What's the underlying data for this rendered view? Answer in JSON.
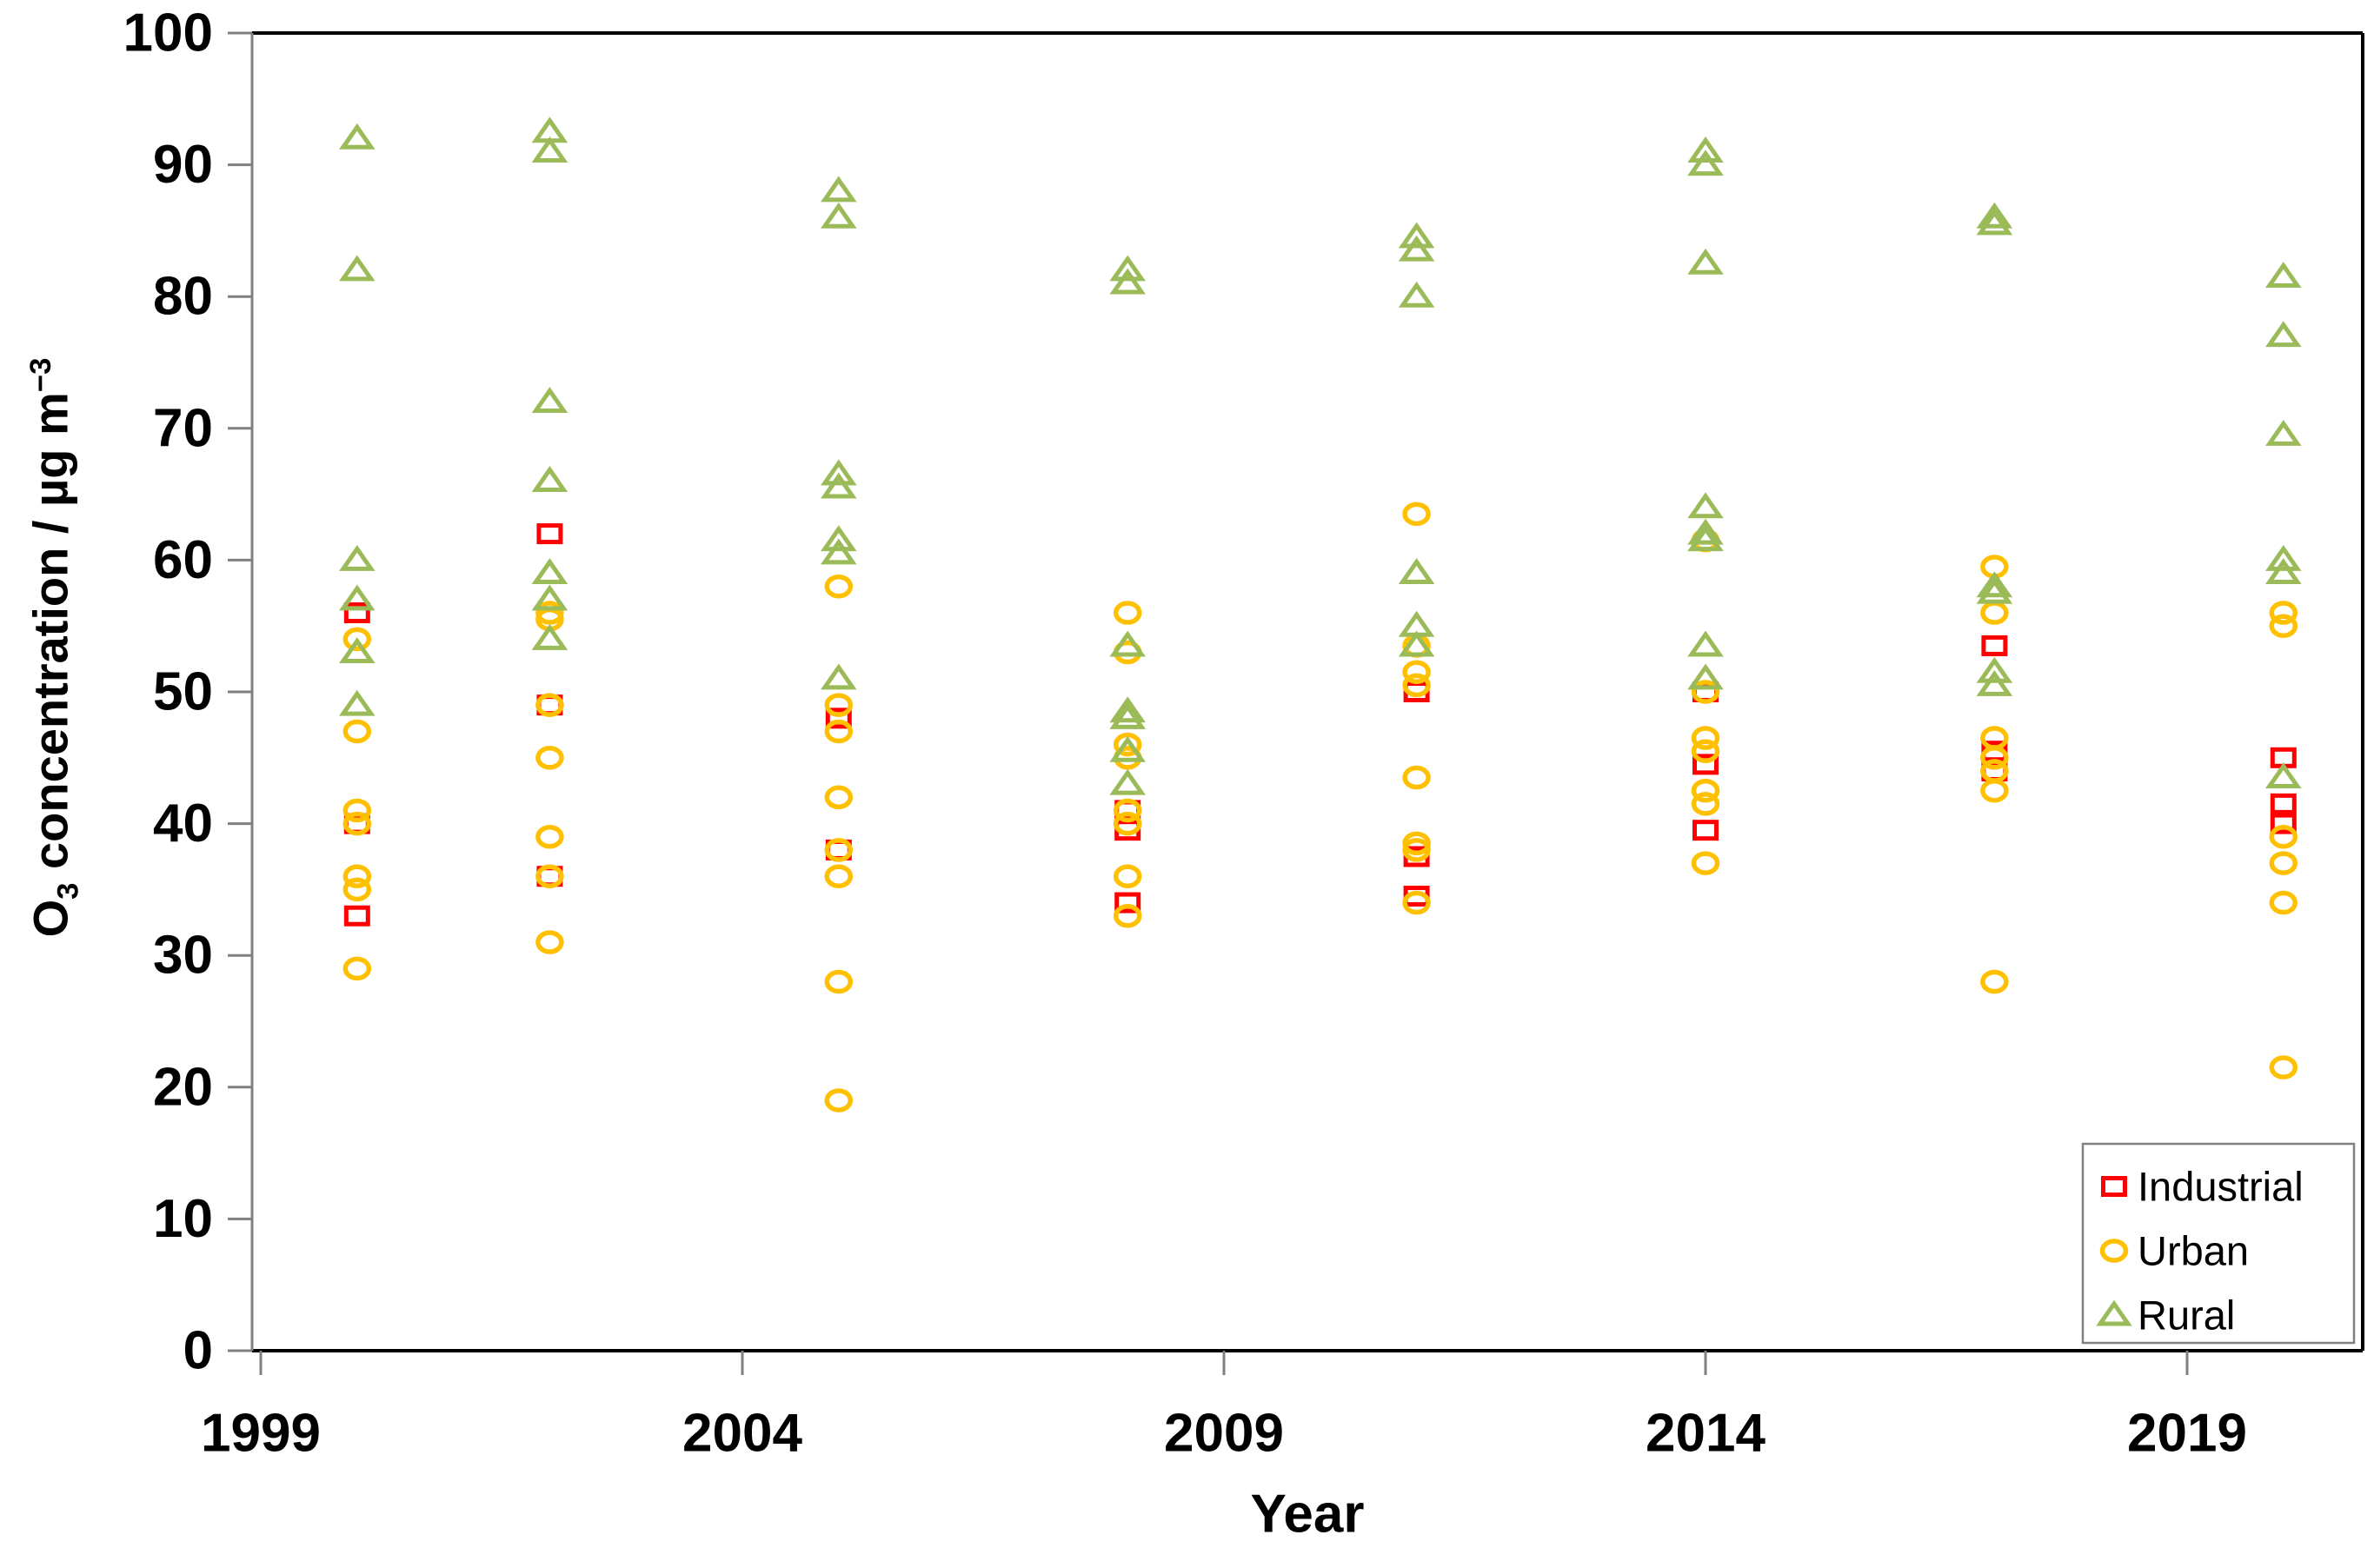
{
  "chart_data": {
    "type": "scatter",
    "title": "",
    "x_axis": {
      "label": "Year",
      "ticks": [
        1999,
        2004,
        2009,
        2014,
        2019
      ],
      "min": 1998.9,
      "max": 2020.8
    },
    "y_axis": {
      "label_text": "O3 concentration / µg m−3",
      "label_parts": {
        "pre": "O",
        "sub": "3",
        "mid": " concentration / µg m",
        "sup": "−3"
      },
      "min": 0,
      "max": 100,
      "tick_step": 10,
      "ticks": [
        0,
        10,
        20,
        30,
        40,
        50,
        60,
        70,
        80,
        90,
        100
      ]
    },
    "grid": "off",
    "legend": {
      "position": "bottom-right",
      "items": [
        "Industrial",
        "Urban",
        "Rural"
      ]
    },
    "series": [
      {
        "name": "Industrial",
        "marker": "square",
        "color": "#FF0000",
        "points": [
          [
            2000,
            56
          ],
          [
            2000,
            40
          ],
          [
            2000,
            33
          ],
          [
            2002,
            62
          ],
          [
            2002,
            49
          ],
          [
            2002,
            36
          ],
          [
            2005,
            48
          ],
          [
            2005,
            38
          ],
          [
            2008,
            41
          ],
          [
            2008,
            39.5
          ],
          [
            2008,
            34
          ],
          [
            2011,
            50
          ],
          [
            2011,
            37.5
          ],
          [
            2011,
            34.5
          ],
          [
            2014,
            50
          ],
          [
            2014,
            44.5
          ],
          [
            2014,
            39.5
          ],
          [
            2017,
            53.5
          ],
          [
            2017,
            45.5
          ],
          [
            2017,
            44
          ],
          [
            2020,
            45
          ],
          [
            2020,
            41.5
          ],
          [
            2020,
            40
          ]
        ]
      },
      {
        "name": "Urban",
        "marker": "circle",
        "color": "#FFC000",
        "points": [
          [
            2000,
            54
          ],
          [
            2000,
            47
          ],
          [
            2000,
            41
          ],
          [
            2000,
            40
          ],
          [
            2000,
            36
          ],
          [
            2000,
            35
          ],
          [
            2000,
            29
          ],
          [
            2002,
            56
          ],
          [
            2002,
            55.5
          ],
          [
            2002,
            49
          ],
          [
            2002,
            45
          ],
          [
            2002,
            39
          ],
          [
            2002,
            36
          ],
          [
            2002,
            31
          ],
          [
            2005,
            58
          ],
          [
            2005,
            49
          ],
          [
            2005,
            47
          ],
          [
            2005,
            42
          ],
          [
            2005,
            38
          ],
          [
            2005,
            36
          ],
          [
            2005,
            28
          ],
          [
            2005,
            19
          ],
          [
            2008,
            56
          ],
          [
            2008,
            53
          ],
          [
            2008,
            46
          ],
          [
            2008,
            45
          ],
          [
            2008,
            41
          ],
          [
            2008,
            40
          ],
          [
            2008,
            36
          ],
          [
            2008,
            33
          ],
          [
            2011,
            63.5
          ],
          [
            2011,
            53.5
          ],
          [
            2011,
            51.5
          ],
          [
            2011,
            50.5
          ],
          [
            2011,
            43.5
          ],
          [
            2011,
            38.5
          ],
          [
            2011,
            38
          ],
          [
            2011,
            34
          ],
          [
            2014,
            61.5
          ],
          [
            2014,
            50
          ],
          [
            2014,
            46.5
          ],
          [
            2014,
            45.5
          ],
          [
            2014,
            42.5
          ],
          [
            2014,
            41.5
          ],
          [
            2014,
            37
          ],
          [
            2017,
            59.5
          ],
          [
            2017,
            56
          ],
          [
            2017,
            46.5
          ],
          [
            2017,
            45
          ],
          [
            2017,
            44
          ],
          [
            2017,
            42.5
          ],
          [
            2017,
            28
          ],
          [
            2020,
            56
          ],
          [
            2020,
            55
          ],
          [
            2020,
            39
          ],
          [
            2020,
            37
          ],
          [
            2020,
            34
          ],
          [
            2020,
            21.5
          ]
        ]
      },
      {
        "name": "Rural",
        "marker": "triangle",
        "color": "#9BBB59",
        "points": [
          [
            2000,
            92
          ],
          [
            2000,
            82
          ],
          [
            2000,
            60
          ],
          [
            2000,
            57
          ],
          [
            2000,
            53
          ],
          [
            2000,
            49
          ],
          [
            2002,
            92.5
          ],
          [
            2002,
            91
          ],
          [
            2002,
            72
          ],
          [
            2002,
            66
          ],
          [
            2002,
            59
          ],
          [
            2002,
            57
          ],
          [
            2002,
            54
          ],
          [
            2005,
            88
          ],
          [
            2005,
            86
          ],
          [
            2005,
            66.5
          ],
          [
            2005,
            65.5
          ],
          [
            2005,
            61.5
          ],
          [
            2005,
            60.5
          ],
          [
            2005,
            51
          ],
          [
            2008,
            82
          ],
          [
            2008,
            81
          ],
          [
            2008,
            53.5
          ],
          [
            2008,
            48.5
          ],
          [
            2008,
            48
          ],
          [
            2008,
            45.5
          ],
          [
            2008,
            43
          ],
          [
            2011,
            84.5
          ],
          [
            2011,
            83.5
          ],
          [
            2011,
            80
          ],
          [
            2011,
            59
          ],
          [
            2011,
            55
          ],
          [
            2011,
            53.5
          ],
          [
            2014,
            91
          ],
          [
            2014,
            90
          ],
          [
            2014,
            82.5
          ],
          [
            2014,
            64
          ],
          [
            2014,
            62
          ],
          [
            2014,
            61.5
          ],
          [
            2014,
            53.5
          ],
          [
            2014,
            51
          ],
          [
            2017,
            86
          ],
          [
            2017,
            85.5
          ],
          [
            2017,
            58
          ],
          [
            2017,
            57.5
          ],
          [
            2017,
            51.5
          ],
          [
            2017,
            50.5
          ],
          [
            2020,
            81.5
          ],
          [
            2020,
            77
          ],
          [
            2020,
            69.5
          ],
          [
            2020,
            60
          ],
          [
            2020,
            59
          ],
          [
            2020,
            43.5
          ]
        ]
      }
    ]
  },
  "colors": {
    "axis_gray": "#808080",
    "frame_black": "#000000",
    "legend_border": "#808080",
    "text": "#000000",
    "background": "#FFFFFF"
  }
}
